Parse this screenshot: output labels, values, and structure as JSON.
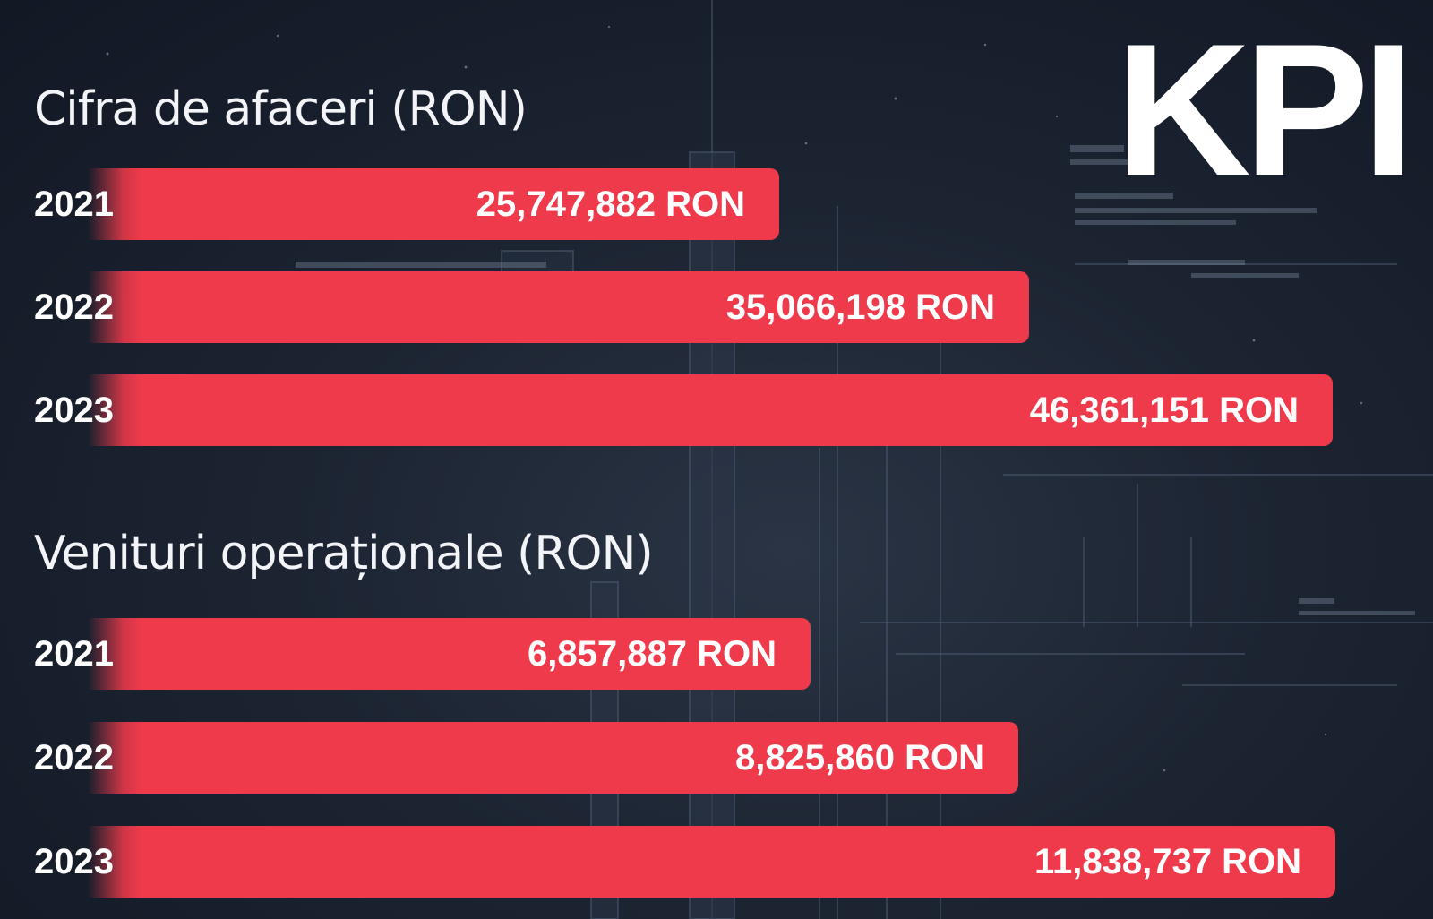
{
  "header": {
    "kpi_label": "KPI"
  },
  "colors": {
    "bar": "#ef3a4b",
    "background": "#1c2432",
    "text": "#ffffff"
  },
  "chart_data": [
    {
      "type": "bar",
      "orientation": "horizontal",
      "title": "Cifra de afaceri (RON)",
      "categories": [
        "2021",
        "2022",
        "2023"
      ],
      "values": [
        25747882,
        35066198,
        46361151
      ],
      "labels": [
        "25,747,882 RON",
        "35,066,198 RON",
        "46,361,151 RON"
      ]
    },
    {
      "type": "bar",
      "orientation": "horizontal",
      "title": "Venituri operaționale (RON)",
      "categories": [
        "2021",
        "2022",
        "2023"
      ],
      "values": [
        6857887,
        8825860,
        11838737
      ],
      "labels": [
        "6,857,887 RON",
        "8,825,860 RON",
        "11,838,737 RON"
      ]
    }
  ]
}
